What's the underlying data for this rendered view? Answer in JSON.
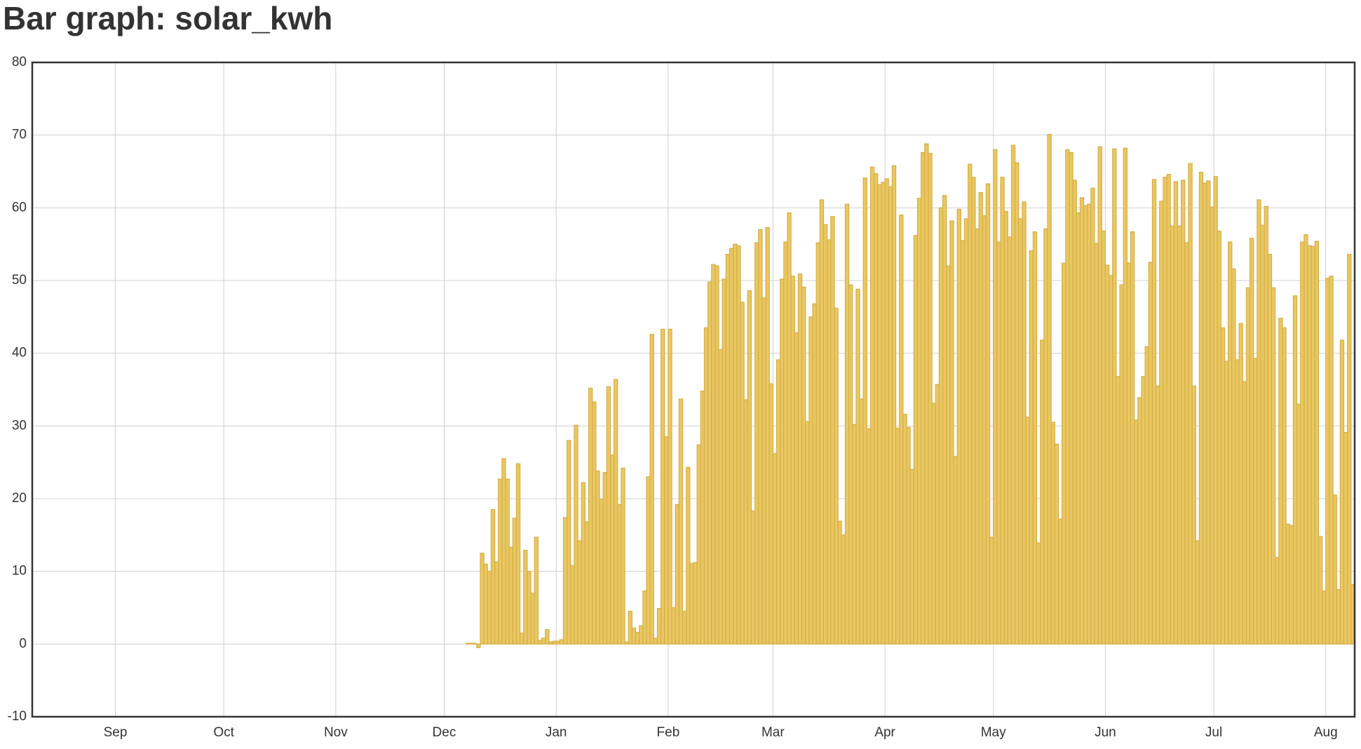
{
  "chart_data": {
    "type": "bar",
    "title": "Bar graph: solar_kwh",
    "x_start": 120,
    "values": [
      0.1,
      0.1,
      0.1,
      -0.5,
      12.5,
      11,
      10,
      18.5,
      11.3,
      22.7,
      25.5,
      22.7,
      13.3,
      17.3,
      24.8,
      1.5,
      12.9,
      10,
      7,
      14.7,
      0.5,
      0.8,
      2,
      0.3,
      0.4,
      0.4,
      0.6,
      17.4,
      28,
      10.8,
      30.1,
      14.2,
      22.2,
      16.8,
      35.2,
      33.3,
      23.8,
      19.9,
      23.6,
      35.4,
      26,
      36.4,
      19.2,
      24.2,
      0.3,
      4.5,
      2.2,
      1.6,
      2.5,
      7.3,
      23,
      42.6,
      0.8,
      4.9,
      43.3,
      28.5,
      43.3,
      5,
      19.2,
      33.7,
      4.5,
      24.3,
      11.1,
      11.2,
      27.4,
      34.8,
      43.5,
      49.8,
      52.2,
      52,
      40.5,
      50.2,
      53.6,
      54.4,
      55,
      54.8,
      47,
      33.6,
      48.6,
      18.3,
      55.2,
      57,
      47.6,
      57.3,
      35.8,
      26.2,
      39.1,
      50.2,
      55.3,
      59.3,
      50.6,
      42.8,
      50.9,
      49.1,
      30.6,
      45,
      46.8,
      55.2,
      61.1,
      57.7,
      55.6,
      58.8,
      46.2,
      16.9,
      15,
      60.5,
      49.4,
      30.2,
      48.8,
      33.7,
      64.1,
      29.6,
      65.6,
      64.7,
      63.2,
      63.5,
      64,
      62.9,
      65.8,
      29.7,
      59,
      31.6,
      29.8,
      24,
      56.2,
      61.3,
      67.6,
      68.8,
      67.5,
      33.1,
      35.7,
      60,
      61.7,
      52,
      58.2,
      25.8,
      59.8,
      55.5,
      58.5,
      66,
      64.2,
      57.1,
      62.1,
      58.9,
      63.3,
      14.7,
      68,
      55.3,
      64.2,
      59.5,
      56,
      68.6,
      66.2,
      58.5,
      60.8,
      31.2,
      54.1,
      56.7,
      13.9,
      41.8,
      57.1,
      70.1,
      30.5,
      27.5,
      17.2,
      52.4,
      68,
      67.6,
      63.8,
      59.3,
      61.4,
      60.3,
      60.5,
      62.7,
      55.1,
      68.4,
      56.8,
      52.1,
      50.7,
      68.1,
      36.8,
      49.4,
      68.2,
      52.4,
      56.7,
      30.8,
      33.9,
      36.8,
      40.9,
      52.5,
      63.9,
      35.5,
      60.9,
      64.2,
      64.6,
      57.5,
      63.6,
      57.5,
      63.8,
      55.2,
      66.1,
      35.5,
      14.2,
      64.9,
      63.4,
      63.7,
      60.1,
      64.3,
      56.8,
      43.5,
      38.9,
      55.3,
      51.6,
      39.1,
      44.1,
      36.1,
      49,
      55.8,
      39.3,
      61.1,
      57.6,
      60.2,
      53.6,
      49,
      11.9,
      44.8,
      43.5,
      16.5,
      16.3,
      47.9,
      33,
      55.3,
      56.3,
      54.8,
      54.7,
      55.4,
      14.8,
      7.3,
      50.3,
      50.6,
      20.5,
      7.5,
      41.8,
      29.1,
      53.6,
      8.2
    ],
    "color": "#e9c863",
    "edge_color": "#d6ae45",
    "xlim": [
      0,
      366
    ],
    "xticks": [
      {
        "value": 23,
        "label": "Sep"
      },
      {
        "value": 53,
        "label": "Oct"
      },
      {
        "value": 84,
        "label": "Nov"
      },
      {
        "value": 114,
        "label": "Dec"
      },
      {
        "value": 145,
        "label": "Jan"
      },
      {
        "value": 176,
        "label": "Feb"
      },
      {
        "value": 205,
        "label": "Mar"
      },
      {
        "value": 236,
        "label": "Apr"
      },
      {
        "value": 266,
        "label": "May"
      },
      {
        "value": 297,
        "label": "Jun"
      },
      {
        "value": 327,
        "label": "Jul"
      },
      {
        "value": 358,
        "label": "Aug"
      }
    ],
    "ylim": [
      -10,
      80
    ],
    "yticks": [
      -10,
      0,
      10,
      20,
      30,
      40,
      50,
      60,
      70,
      80
    ],
    "grid": true
  }
}
